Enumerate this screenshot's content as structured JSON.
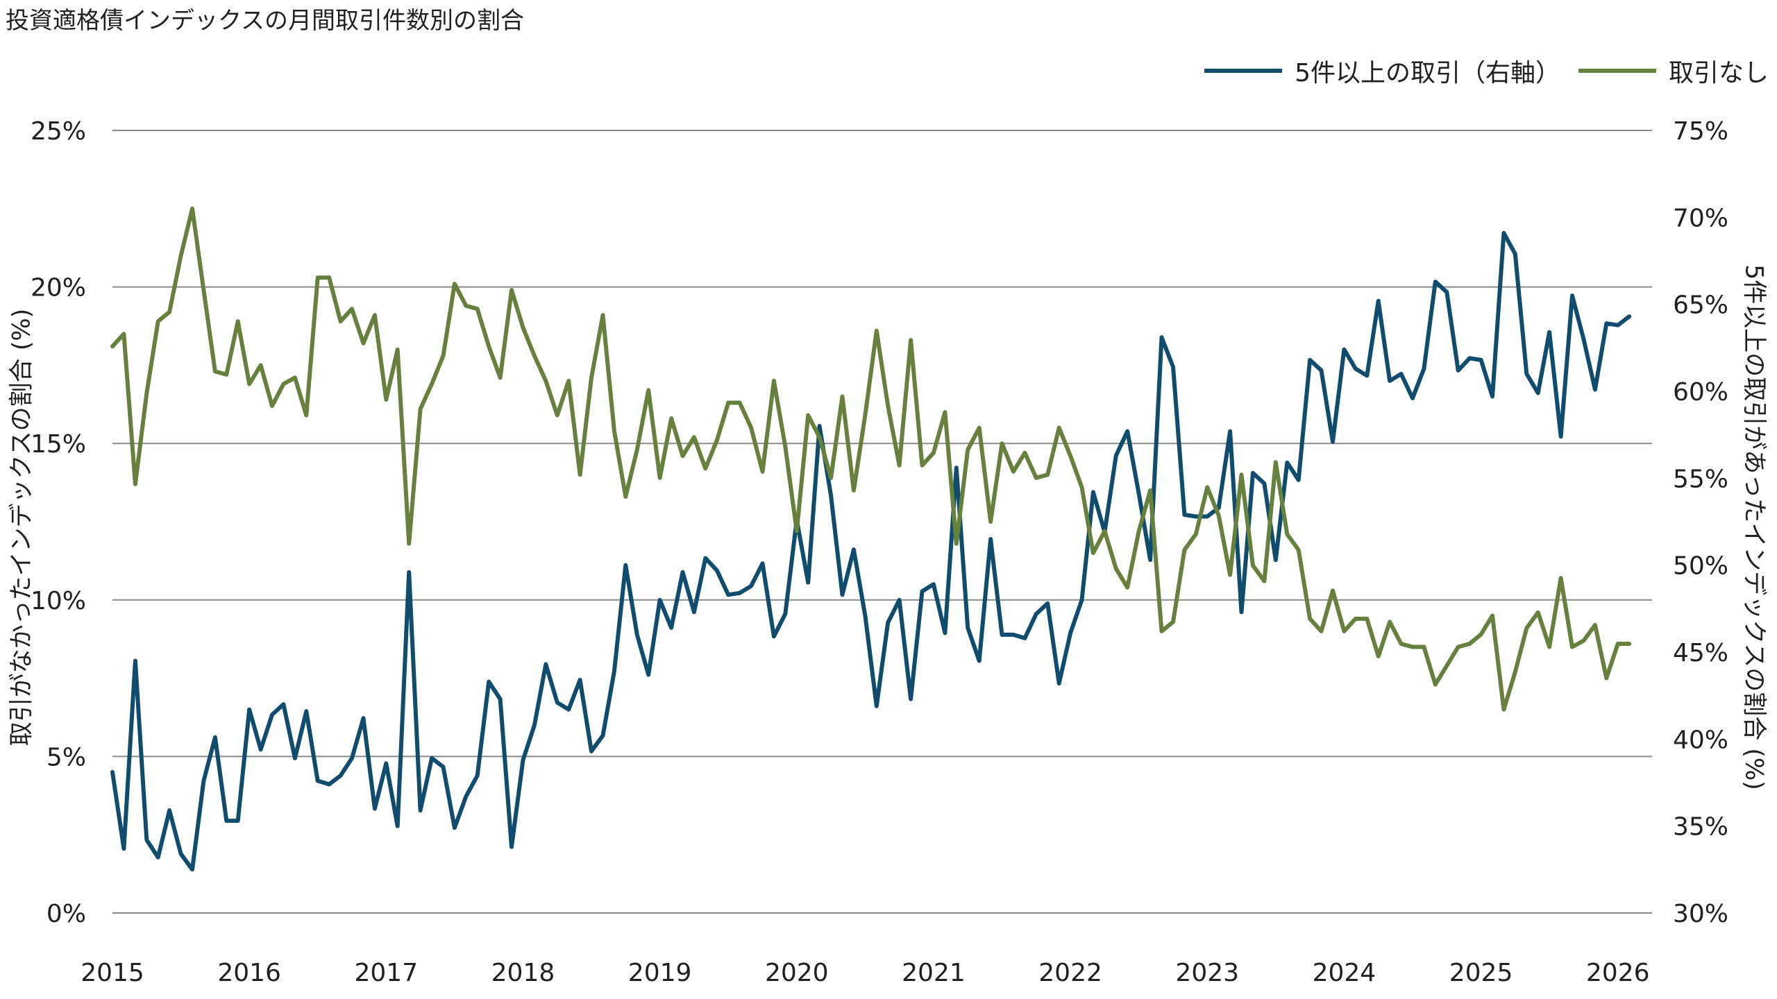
{
  "chart_data": {
    "type": "line",
    "title": "投資適格債インデックスの月間取引件数別の割合",
    "ylabel": "取引がなかったインデックスの割合 (%)",
    "y2label": "5件以上の取引があったインデックスの割合 (%)",
    "ylim": [
      0,
      25
    ],
    "y2lim": [
      30,
      75
    ],
    "xlim": [
      2015,
      2026.25
    ],
    "grid": true,
    "legend_position": "top-right",
    "x_ticks": [
      "2015",
      "2016",
      "2017",
      "2018",
      "2019",
      "2020",
      "2021",
      "2022",
      "2023",
      "2024",
      "2025",
      "2026"
    ],
    "y_ticks": [
      "0%",
      "5%",
      "10%",
      "15%",
      "20%",
      "25%"
    ],
    "y2_ticks": [
      "30%",
      "35%",
      "40%",
      "45%",
      "50%",
      "55%",
      "60%",
      "65%",
      "70%",
      "75%"
    ],
    "series": [
      {
        "name": "5件以上の取引（右軸）",
        "axis": "right",
        "color": "#0f4c6e",
        "x_start": 2015.0,
        "x_step": 0.0833333,
        "values": [
          38.1,
          33.7,
          44.5,
          34.2,
          33.2,
          35.9,
          33.4,
          32.5,
          37.6,
          40.1,
          35.3,
          35.3,
          41.7,
          39.4,
          41.4,
          42.0,
          38.9,
          41.6,
          37.6,
          37.4,
          37.9,
          38.9,
          41.2,
          36.0,
          38.6,
          35.0,
          49.6,
          35.9,
          38.9,
          38.4,
          34.9,
          36.7,
          37.9,
          43.3,
          42.3,
          33.8,
          38.8,
          40.8,
          44.3,
          42.1,
          41.7,
          43.4,
          39.3,
          40.2,
          43.9,
          50.0,
          46.0,
          43.7,
          48.0,
          46.4,
          49.6,
          47.3,
          50.4,
          49.7,
          48.3,
          48.4,
          48.8,
          50.1,
          45.9,
          47.2,
          52.6,
          49.0,
          58.0,
          54.0,
          48.3,
          50.9,
          47.1,
          41.9,
          46.7,
          48.0,
          42.3,
          48.5,
          48.9,
          46.1,
          55.6,
          46.4,
          44.5,
          51.5,
          46.0,
          46.0,
          45.8,
          47.2,
          47.8,
          43.2,
          46.1,
          48.0,
          54.2,
          51.9,
          56.3,
          57.7,
          54.1,
          50.3,
          63.1,
          61.4,
          52.9,
          52.8,
          52.8,
          53.3,
          57.7,
          47.3,
          55.3,
          54.7,
          50.3,
          55.9,
          54.9,
          61.8,
          61.2,
          57.1,
          62.4,
          61.3,
          60.9,
          65.2,
          60.6,
          61.0,
          59.6,
          61.3,
          66.3,
          65.7,
          61.2,
          61.9,
          61.8,
          59.7,
          69.1,
          67.9,
          61.0,
          59.9,
          63.4,
          57.4,
          65.5,
          63.0,
          60.1,
          63.9,
          63.8,
          64.3
        ]
      },
      {
        "name": "取引なし",
        "axis": "left",
        "color": "#66813d",
        "x_start": 2015.0,
        "x_step": 0.0833333,
        "values": [
          18.1,
          18.5,
          13.7,
          16.6,
          18.9,
          19.2,
          21.0,
          22.5,
          19.9,
          17.3,
          17.2,
          18.9,
          16.9,
          17.5,
          16.2,
          16.9,
          17.1,
          15.9,
          20.3,
          20.3,
          18.9,
          19.3,
          18.2,
          19.1,
          16.4,
          18.0,
          11.8,
          16.1,
          16.9,
          17.8,
          20.1,
          19.4,
          19.3,
          18.1,
          17.1,
          19.9,
          18.7,
          17.8,
          17.0,
          15.9,
          17.0,
          14.0,
          17.1,
          19.1,
          15.4,
          13.3,
          14.8,
          16.7,
          13.9,
          15.8,
          14.6,
          15.2,
          14.2,
          15.1,
          16.3,
          16.3,
          15.5,
          14.1,
          17.0,
          14.9,
          12.2,
          15.9,
          15.2,
          13.9,
          16.5,
          13.5,
          15.9,
          18.6,
          16.2,
          14.3,
          18.3,
          14.3,
          14.7,
          16.0,
          11.8,
          14.8,
          15.5,
          12.5,
          15.0,
          14.1,
          14.7,
          13.9,
          14.0,
          15.5,
          14.6,
          13.6,
          11.5,
          12.2,
          11.0,
          10.4,
          12.2,
          13.5,
          9.0,
          9.3,
          11.6,
          12.1,
          13.6,
          12.7,
          10.8,
          14.0,
          11.1,
          10.6,
          14.4,
          12.1,
          11.6,
          9.4,
          9.0,
          10.3,
          9.0,
          9.4,
          9.4,
          8.2,
          9.3,
          8.6,
          8.5,
          8.5,
          7.3,
          7.9,
          8.5,
          8.6,
          8.9,
          9.5,
          6.5,
          7.7,
          9.1,
          9.6,
          8.5,
          10.7,
          8.5,
          8.7,
          9.2,
          7.5,
          8.6,
          8.6
        ]
      }
    ]
  }
}
